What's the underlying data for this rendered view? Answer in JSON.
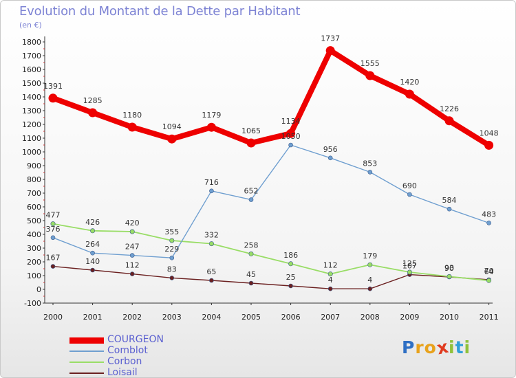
{
  "header": {
    "title": "Evolution du Montant de la Dette par Habitant",
    "subtitle": "(en €)"
  },
  "brand": {
    "letters": [
      "P",
      "r",
      "o",
      "x",
      "i",
      "t",
      "i"
    ],
    "colors": [
      "#2e6fc4",
      "#e8a21c",
      "#e8a21c",
      "#e03a1f",
      "#8fc13a",
      "#2e9fd8",
      "#8fc13a"
    ]
  },
  "chart_data": {
    "type": "line",
    "title": "Evolution du Montant de la Dette par Habitant",
    "ylabel": "(en €)",
    "xlabel": "",
    "x": [
      "2000",
      "2001",
      "2002",
      "2003",
      "2004",
      "2005",
      "2006",
      "2007",
      "2008",
      "2009",
      "2010",
      "2011"
    ],
    "ylim": [
      -100,
      1800
    ],
    "yticks": [
      "-100",
      "0",
      "100",
      "200",
      "300",
      "400",
      "500",
      "600",
      "700",
      "800",
      "900",
      "1000",
      "1100",
      "1200",
      "1300",
      "1400",
      "1500",
      "1600",
      "1700",
      "1800"
    ],
    "grid": false,
    "legend": "bottom-left",
    "series": [
      {
        "name": "COURGEON",
        "color": "#ee0000",
        "values": [
          1391,
          1285,
          1180,
          1094,
          1179,
          1065,
          1134,
          1737,
          1555,
          1420,
          1226,
          1048
        ],
        "labels": [
          "1391",
          "1285",
          "1180",
          "1094",
          "1179",
          "1065",
          "1134",
          "1737",
          "1555",
          "1420",
          "1226",
          "1048"
        ]
      },
      {
        "name": "Comblot",
        "color": "#6f9fd0",
        "values": [
          376,
          264,
          247,
          229,
          716,
          652,
          1050,
          956,
          853,
          690,
          584,
          483
        ],
        "labels": [
          "376",
          "264",
          "247",
          "229",
          "716",
          "652",
          "1050",
          "956",
          "853",
          "690",
          "584",
          "483"
        ]
      },
      {
        "name": "Corbon",
        "color": "#99dd66",
        "values": [
          477,
          426,
          420,
          355,
          332,
          258,
          186,
          112,
          179,
          125,
          93,
          64
        ],
        "labels": [
          "477",
          "426",
          "420",
          "355",
          "332",
          "258",
          "186",
          "112",
          "179",
          "125",
          "93",
          "64"
        ]
      },
      {
        "name": "Loisail",
        "color": "#6b2020",
        "values": [
          167,
          140,
          112,
          83,
          65,
          45,
          25,
          4,
          4,
          107,
          90,
          70
        ],
        "labels": [
          "167",
          "140",
          "112",
          "83",
          "65",
          "45",
          "25",
          "4",
          "4",
          "107",
          "90",
          "70"
        ]
      }
    ]
  }
}
